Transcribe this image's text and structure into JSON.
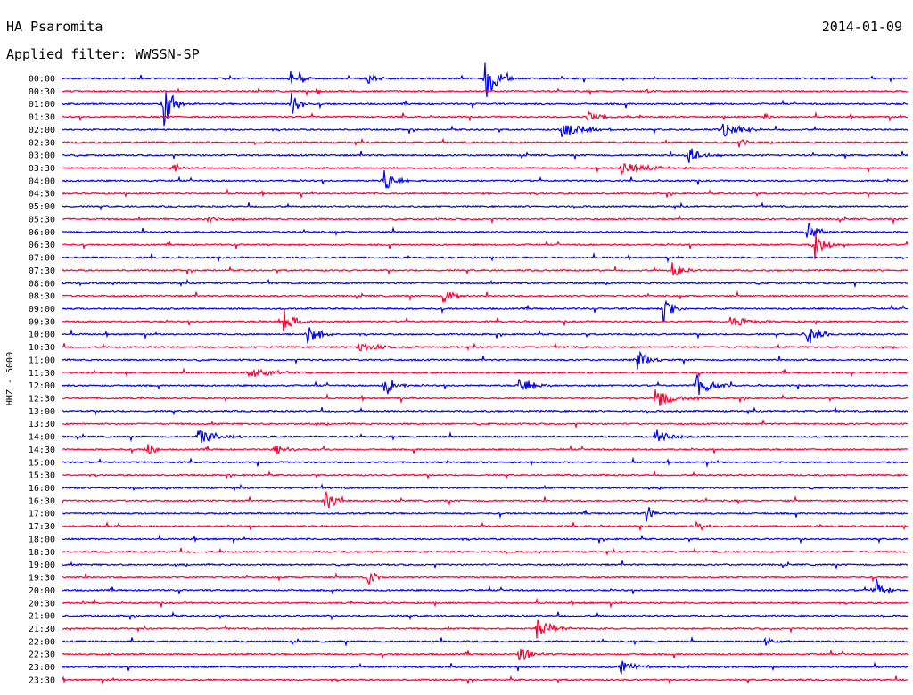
{
  "header": {
    "station": "HA Psaromita",
    "date": "2014-01-09",
    "filter_label": "Applied filter: WWSSN-SP"
  },
  "chart_data": {
    "type": "line",
    "title": "HA Psaromita",
    "subtitle": "Applied filter: WWSSN-SP",
    "ylabel": "HHZ - 5000",
    "xlabel": "",
    "grid": false,
    "legend": "none",
    "colors": [
      "#0000ff",
      "#ff0033"
    ],
    "tick_labels": [
      "00:00",
      "00:30",
      "01:00",
      "01:30",
      "02:00",
      "02:30",
      "03:00",
      "03:30",
      "04:00",
      "04:30",
      "05:00",
      "05:30",
      "06:00",
      "06:30",
      "07:00",
      "07:30",
      "08:00",
      "08:30",
      "09:00",
      "09:30",
      "10:00",
      "10:30",
      "11:00",
      "11:30",
      "12:00",
      "12:30",
      "13:00",
      "13:30",
      "14:00",
      "14:30",
      "15:00",
      "15:30",
      "16:00",
      "16:30",
      "17:00",
      "17:30",
      "18:00",
      "18:30",
      "19:00",
      "19:30",
      "20:00",
      "20:30",
      "21:00",
      "21:30",
      "22:00",
      "22:30",
      "23:00",
      "23:30"
    ],
    "events": [
      {
        "row": 0,
        "x": 0.27,
        "amp": 1.8,
        "len": 0.004
      },
      {
        "row": 0,
        "x": 0.28,
        "amp": 0.6,
        "len": 0.02
      },
      {
        "row": 0,
        "x": 0.36,
        "amp": 0.5,
        "len": 0.03
      },
      {
        "row": 0,
        "x": 0.5,
        "amp": 2.0,
        "len": 0.035
      },
      {
        "row": 1,
        "x": 0.3,
        "amp": 0.5,
        "len": 0.01
      },
      {
        "row": 1,
        "x": 0.69,
        "amp": 0.4,
        "len": 0.02
      },
      {
        "row": 2,
        "x": 0.12,
        "amp": 2.5,
        "len": 0.025
      },
      {
        "row": 2,
        "x": 0.27,
        "amp": 1.6,
        "len": 0.02
      },
      {
        "row": 3,
        "x": 0.62,
        "amp": 0.5,
        "len": 0.04
      },
      {
        "row": 3,
        "x": 0.83,
        "amp": 0.4,
        "len": 0.02
      },
      {
        "row": 4,
        "x": 0.59,
        "amp": 0.6,
        "len": 0.08
      },
      {
        "row": 4,
        "x": 0.78,
        "amp": 0.6,
        "len": 0.06
      },
      {
        "row": 5,
        "x": 0.8,
        "amp": 0.5,
        "len": 0.02
      },
      {
        "row": 6,
        "x": 0.74,
        "amp": 0.8,
        "len": 0.04
      },
      {
        "row": 7,
        "x": 0.13,
        "amp": 0.6,
        "len": 0.02
      },
      {
        "row": 7,
        "x": 0.66,
        "amp": 0.6,
        "len": 0.08
      },
      {
        "row": 8,
        "x": 0.38,
        "amp": 1.2,
        "len": 0.03
      },
      {
        "row": 11,
        "x": 0.17,
        "amp": 0.5,
        "len": 0.02
      },
      {
        "row": 12,
        "x": 0.88,
        "amp": 1.0,
        "len": 0.03
      },
      {
        "row": 13,
        "x": 0.89,
        "amp": 1.2,
        "len": 0.03
      },
      {
        "row": 15,
        "x": 0.72,
        "amp": 0.8,
        "len": 0.03
      },
      {
        "row": 17,
        "x": 0.45,
        "amp": 0.6,
        "len": 0.04
      },
      {
        "row": 18,
        "x": 0.71,
        "amp": 1.2,
        "len": 0.03
      },
      {
        "row": 19,
        "x": 0.26,
        "amp": 1.4,
        "len": 0.03
      },
      {
        "row": 19,
        "x": 0.79,
        "amp": 0.6,
        "len": 0.05
      },
      {
        "row": 20,
        "x": 0.29,
        "amp": 1.2,
        "len": 0.03
      },
      {
        "row": 20,
        "x": 0.88,
        "amp": 1.4,
        "len": 0.03
      },
      {
        "row": 21,
        "x": 0.35,
        "amp": 0.5,
        "len": 0.05
      },
      {
        "row": 22,
        "x": 0.68,
        "amp": 0.9,
        "len": 0.03
      },
      {
        "row": 23,
        "x": 0.22,
        "amp": 0.5,
        "len": 0.08
      },
      {
        "row": 24,
        "x": 0.38,
        "amp": 1.2,
        "len": 0.03
      },
      {
        "row": 24,
        "x": 0.54,
        "amp": 0.8,
        "len": 0.04
      },
      {
        "row": 24,
        "x": 0.75,
        "amp": 1.0,
        "len": 0.04
      },
      {
        "row": 25,
        "x": 0.7,
        "amp": 0.8,
        "len": 0.06
      },
      {
        "row": 28,
        "x": 0.16,
        "amp": 0.6,
        "len": 0.06
      },
      {
        "row": 28,
        "x": 0.7,
        "amp": 0.7,
        "len": 0.05
      },
      {
        "row": 29,
        "x": 0.1,
        "amp": 1.0,
        "len": 0.02
      },
      {
        "row": 29,
        "x": 0.25,
        "amp": 0.6,
        "len": 0.03
      },
      {
        "row": 33,
        "x": 0.31,
        "amp": 1.0,
        "len": 0.03
      },
      {
        "row": 34,
        "x": 0.69,
        "amp": 0.8,
        "len": 0.02
      },
      {
        "row": 35,
        "x": 0.75,
        "amp": 0.7,
        "len": 0.02
      },
      {
        "row": 39,
        "x": 0.36,
        "amp": 0.8,
        "len": 0.03
      },
      {
        "row": 40,
        "x": 0.96,
        "amp": 1.2,
        "len": 0.03
      },
      {
        "row": 43,
        "x": 0.56,
        "amp": 0.9,
        "len": 0.05
      },
      {
        "row": 44,
        "x": 0.83,
        "amp": 0.5,
        "len": 0.03
      },
      {
        "row": 45,
        "x": 0.54,
        "amp": 0.8,
        "len": 0.03
      },
      {
        "row": 46,
        "x": 0.66,
        "amp": 0.7,
        "len": 0.04
      }
    ]
  }
}
